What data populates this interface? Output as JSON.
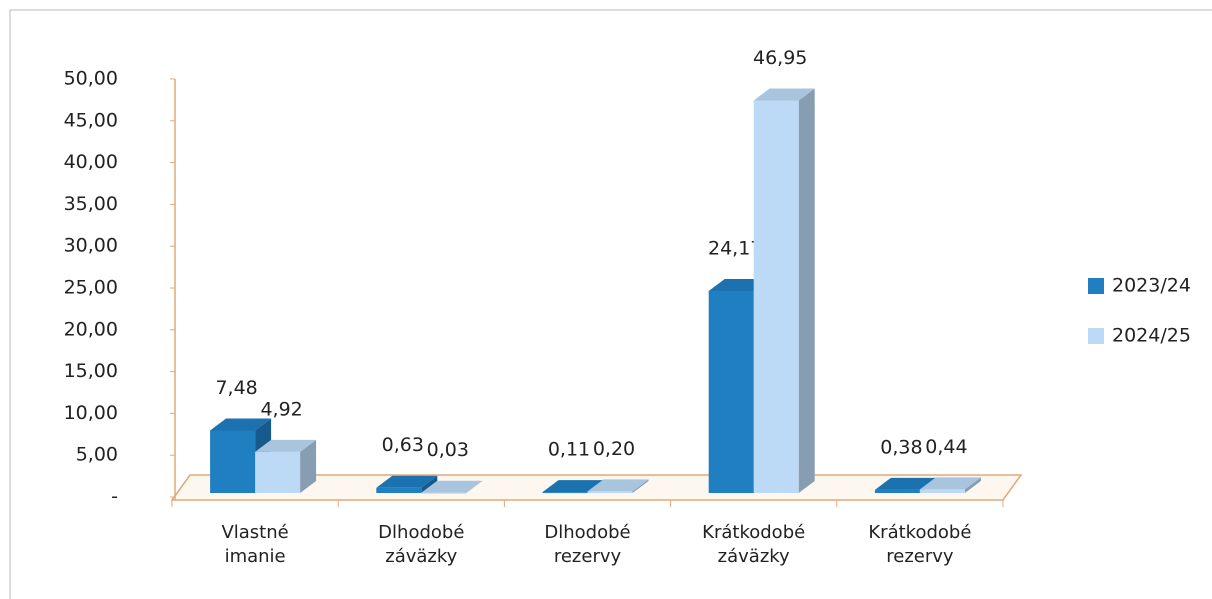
{
  "chart_data": {
    "type": "bar3d",
    "categories": [
      "Vlastné imanie",
      "Dlhodobé záväzky",
      "Dlhodobé rezervy",
      "Krátkodobé záväzky",
      "Krátkodobé rezervy"
    ],
    "series": [
      {
        "name": "2023/24",
        "color": "#1f7fc1",
        "values": [
          7.48,
          0.63,
          0.11,
          24.17,
          0.38
        ],
        "value_labels": [
          "7,48",
          "0,63",
          "0,11",
          "24,17",
          "0,38"
        ]
      },
      {
        "name": "2024/25",
        "color": "#bcdaf6",
        "values": [
          4.92,
          0.03,
          0.2,
          46.95,
          0.44
        ],
        "value_labels": [
          "4,92",
          "0,03",
          "0,20",
          "46,95",
          "0,44"
        ]
      }
    ],
    "ylim": [
      0,
      50
    ],
    "yticks": [
      {
        "value": 0,
        "label": "-"
      },
      {
        "value": 5,
        "label": "5,00"
      },
      {
        "value": 10,
        "label": "10,00"
      },
      {
        "value": 15,
        "label": "15,00"
      },
      {
        "value": 20,
        "label": "20,00"
      },
      {
        "value": 25,
        "label": "25,00"
      },
      {
        "value": 30,
        "label": "30,00"
      },
      {
        "value": 35,
        "label": "35,00"
      },
      {
        "value": 40,
        "label": "40,00"
      },
      {
        "value": 45,
        "label": "45,00"
      },
      {
        "value": 50,
        "label": "50,00"
      }
    ],
    "legend": "right"
  }
}
